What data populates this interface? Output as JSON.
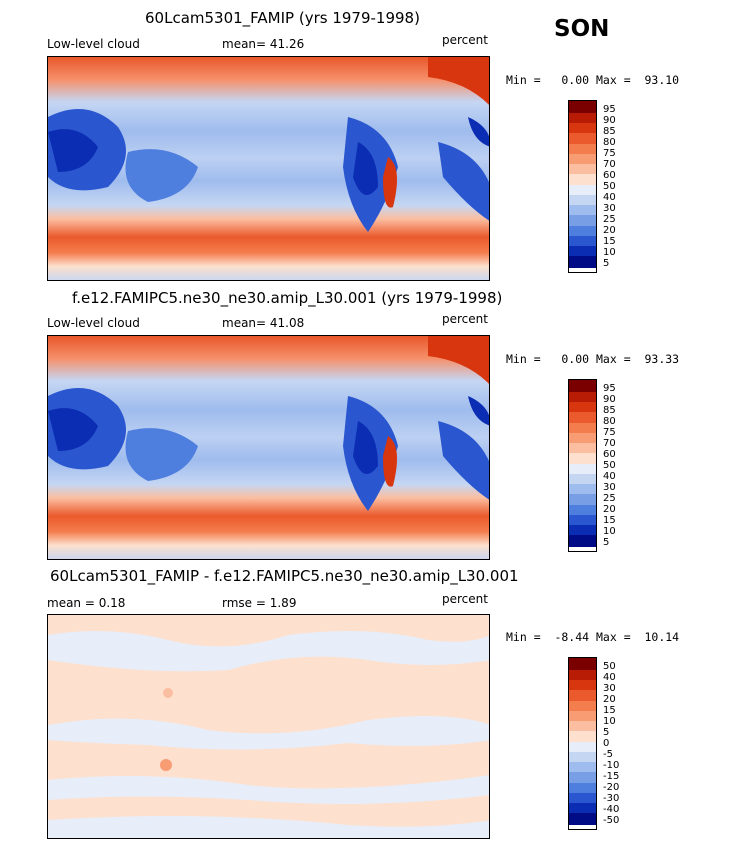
{
  "season": "SON",
  "panels": [
    {
      "title": "60Lcam5301_FAMIP (yrs 1979-1998)",
      "left_label": "Low-level cloud",
      "mid_label": "mean=  41.26",
      "right_label": "percent",
      "minmax": "Min =   0.00 Max =  93.10",
      "colorbar_labels": [
        "95",
        "90",
        "85",
        "80",
        "75",
        "70",
        "60",
        "50",
        "40",
        "30",
        "25",
        "20",
        "15",
        "10",
        "5"
      ]
    },
    {
      "title": "f.e12.FAMIPC5.ne30_ne30.amip_L30.001 (yrs 1979-1998)",
      "left_label": "Low-level cloud",
      "mid_label": "mean=  41.08",
      "right_label": "percent",
      "minmax": "Min =   0.00 Max =  93.33",
      "colorbar_labels": [
        "95",
        "90",
        "85",
        "80",
        "75",
        "70",
        "60",
        "50",
        "40",
        "30",
        "25",
        "20",
        "15",
        "10",
        "5"
      ]
    },
    {
      "title": "60Lcam5301_FAMIP - f.e12.FAMIPC5.ne30_ne30.amip_L30.001",
      "left_label": "mean =    0.18",
      "mid_label": "rmse =    1.89",
      "right_label": "percent",
      "minmax": "Min =  -8.44 Max =  10.14",
      "colorbar_labels": [
        "50",
        "40",
        "30",
        "20",
        "15",
        "10",
        "5",
        "0",
        "-5",
        "-10",
        "-15",
        "-20",
        "-30",
        "-40",
        "-50"
      ]
    }
  ],
  "colors": {
    "scale": [
      "#7a0000",
      "#b81c04",
      "#d8360f",
      "#ea5a2c",
      "#f47d4e",
      "#f89c74",
      "#fbbea0",
      "#fde0cd",
      "#e7eefa",
      "#c5d6f3",
      "#9fbcee",
      "#789ee6",
      "#4e7ede",
      "#2a57cf",
      "#0b2db3",
      "#000c86"
    ]
  }
}
